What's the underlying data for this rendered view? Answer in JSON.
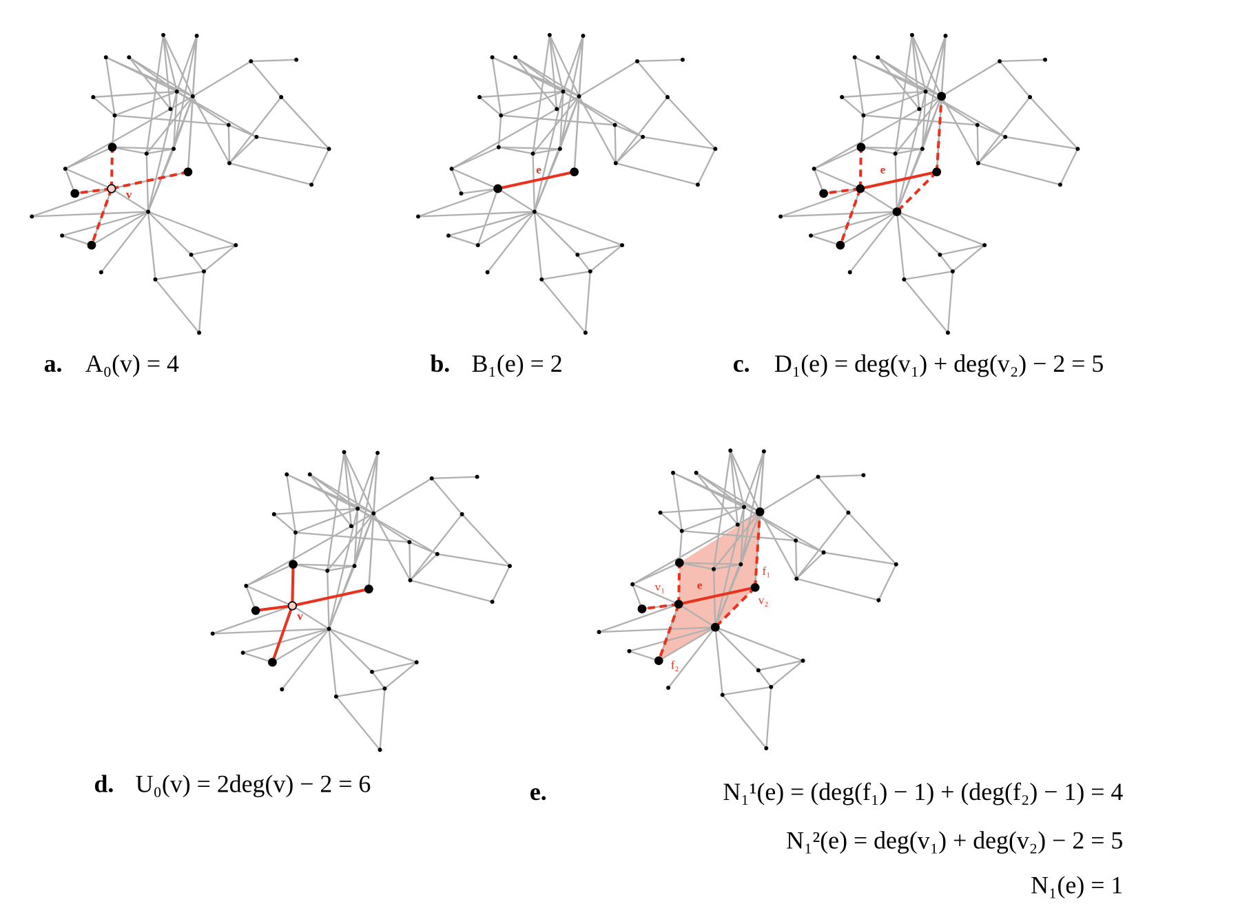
{
  "panels": [
    {
      "label": "a.",
      "formula": [
        "A₀(v) = 4"
      ],
      "node_labels": [
        "v"
      ]
    },
    {
      "label": "b.",
      "formula": [
        "B₁(e) = 2"
      ],
      "node_labels": [
        "e"
      ]
    },
    {
      "label": "c.",
      "formula": [
        "D₁(e) = deg(v₁) + deg(v₂) − 2 = 5"
      ],
      "node_labels": [
        "e"
      ]
    },
    {
      "label": "d.",
      "formula": [
        "U₀(v) = 2deg(v) − 2 = 6"
      ],
      "node_labels": [
        "v"
      ]
    },
    {
      "label": "e.",
      "formula": [
        "N₁¹(e) = (deg(f₁) − 1) + (deg(f₂) − 1) = 4",
        "N₁²(e) = deg(v₁) + deg(v₂) − 2 = 5",
        "N₁(e) = 1"
      ],
      "node_labels": [
        "v₁",
        "e",
        "f₁",
        "v₂",
        "f₂"
      ]
    }
  ]
}
